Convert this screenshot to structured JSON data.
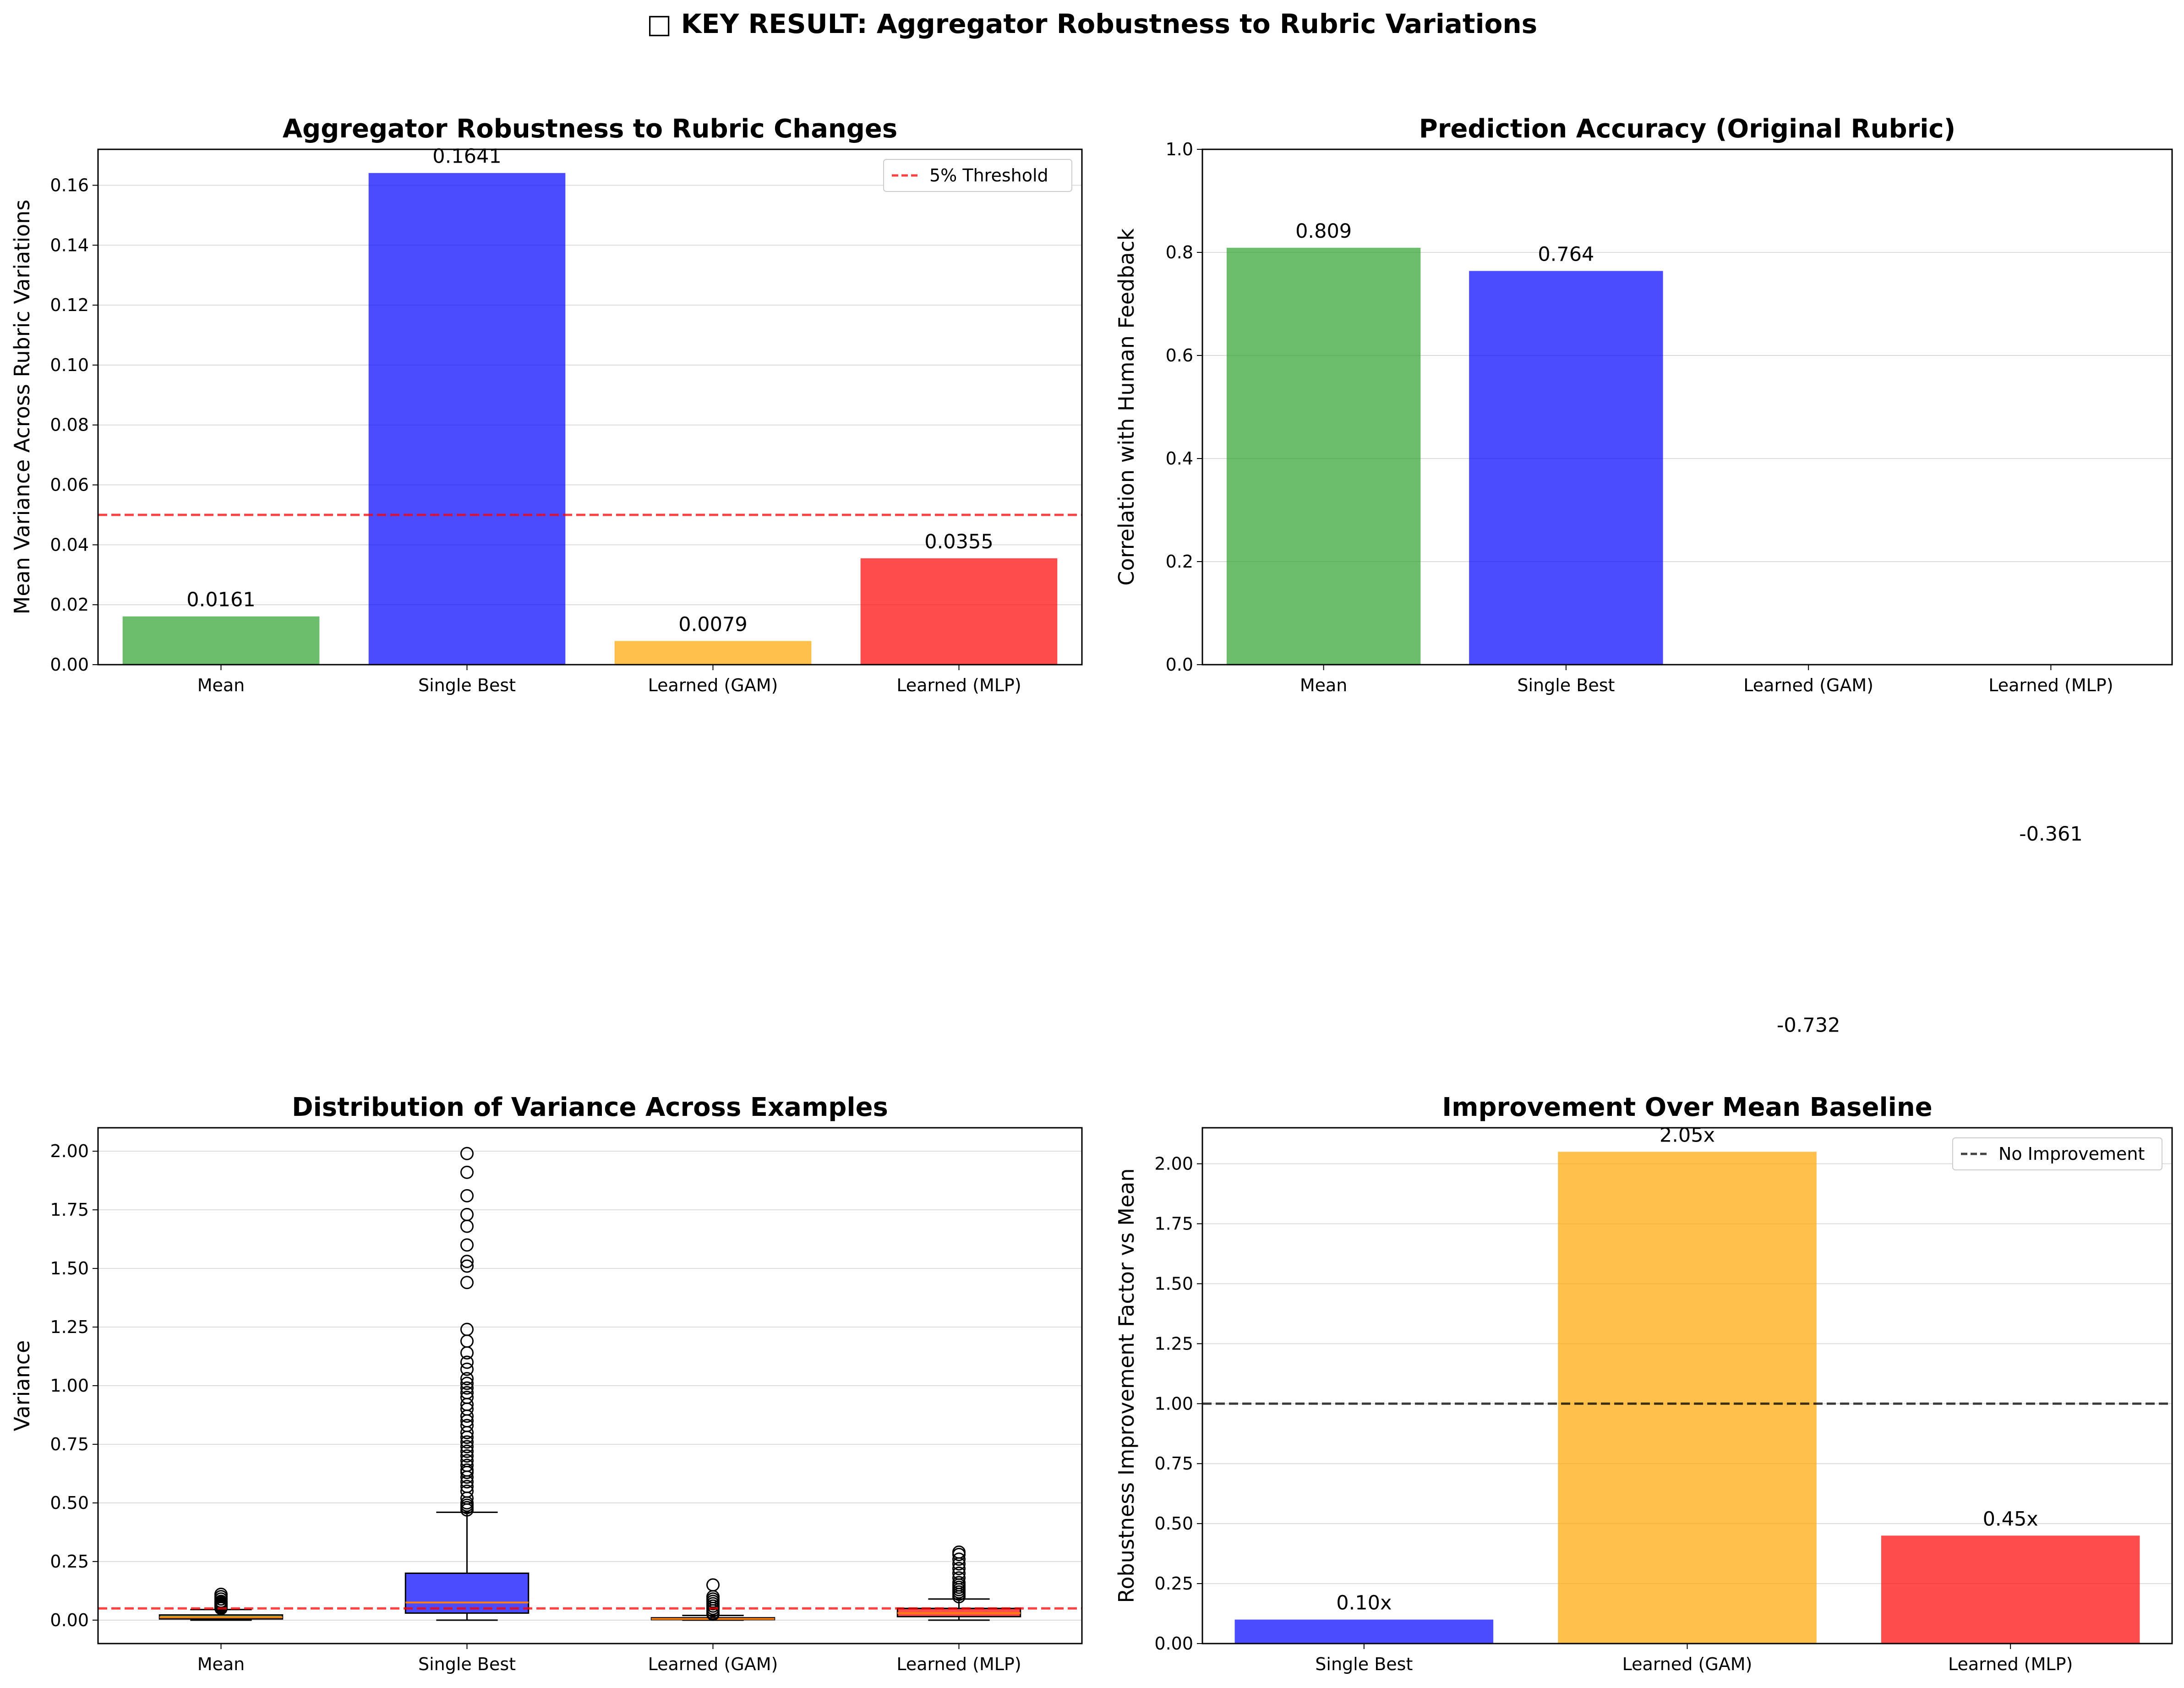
{
  "figure": {
    "suptitle": "□ KEY RESULT: Aggregator Robustness to Rubric Variations"
  },
  "chart_data": [
    {
      "type": "bar",
      "title": "Aggregator Robustness to Rubric Changes",
      "xlabel": "",
      "ylabel": "Mean Variance Across Rubric Variations",
      "categories": [
        "Mean",
        "Single Best",
        "Learned (GAM)",
        "Learned (MLP)"
      ],
      "values": [
        0.0161,
        0.1641,
        0.0079,
        0.0355
      ],
      "value_labels": [
        "0.0161",
        "0.1641",
        "0.0079",
        "0.0355"
      ],
      "colors": [
        "#2ca02c",
        "#0000ff",
        "#ffa500",
        "#ff0000"
      ],
      "ylim": [
        0,
        0.172
      ],
      "yticks": [
        0.0,
        0.02,
        0.04,
        0.06,
        0.08,
        0.1,
        0.12,
        0.14,
        0.16
      ],
      "ytick_labels": [
        "0.00",
        "0.02",
        "0.04",
        "0.06",
        "0.08",
        "0.10",
        "0.12",
        "0.14",
        "0.16"
      ],
      "grid": "y",
      "reference_line": {
        "value": 0.05,
        "label": "5% Threshold",
        "color": "#ff0000",
        "style": "dashed"
      },
      "legend": {
        "position": "top-right",
        "entries": [
          "5% Threshold"
        ]
      }
    },
    {
      "type": "bar",
      "title": "Prediction Accuracy (Original Rubric)",
      "xlabel": "",
      "ylabel": "Correlation with Human Feedback",
      "categories": [
        "Mean",
        "Single Best",
        "Learned (GAM)",
        "Learned (MLP)"
      ],
      "values": [
        0.809,
        0.764,
        -0.732,
        -0.361
      ],
      "value_labels": [
        "0.809",
        "0.764",
        "-0.732",
        "-0.361"
      ],
      "colors": [
        "#2ca02c",
        "#0000ff",
        "#ffa500",
        "#ff0000"
      ],
      "ylim": [
        0,
        1.0
      ],
      "yticks": [
        0.0,
        0.2,
        0.4,
        0.6,
        0.8,
        1.0
      ],
      "ytick_labels": [
        "0.0",
        "0.2",
        "0.4",
        "0.6",
        "0.8",
        "1.0"
      ],
      "grid": "y"
    },
    {
      "type": "box",
      "title": "Distribution of Variance Across Examples",
      "xlabel": "",
      "ylabel": "Variance",
      "categories": [
        "Mean",
        "Single Best",
        "Learned (GAM)",
        "Learned (MLP)"
      ],
      "colors": [
        "#2ca02c",
        "#0000ff",
        "#ffa500",
        "#ff0000"
      ],
      "boxes": [
        {
          "name": "Mean",
          "whisker_low": 0.0,
          "q1": 0.005,
          "median": 0.012,
          "q3": 0.022,
          "whisker_high": 0.045,
          "outliers": [
            0.05,
            0.055,
            0.06,
            0.065,
            0.07,
            0.075,
            0.08,
            0.09,
            0.1,
            0.11
          ]
        },
        {
          "name": "Single Best",
          "whisker_low": 0.0,
          "q1": 0.03,
          "median": 0.075,
          "q3": 0.2,
          "whisker_high": 0.46,
          "outliers": [
            0.47,
            0.48,
            0.49,
            0.5,
            0.52,
            0.55,
            0.57,
            0.59,
            0.61,
            0.63,
            0.64,
            0.66,
            0.68,
            0.7,
            0.72,
            0.74,
            0.76,
            0.78,
            0.8,
            0.83,
            0.85,
            0.87,
            0.9,
            0.92,
            0.95,
            0.97,
            0.99,
            1.01,
            1.03,
            1.07,
            1.1,
            1.14,
            1.19,
            1.24,
            1.44,
            1.51,
            1.53,
            1.6,
            1.68,
            1.73,
            1.81,
            1.91,
            1.99
          ]
        },
        {
          "name": "Learned (GAM)",
          "whisker_low": 0.0,
          "q1": 0.002,
          "median": 0.005,
          "q3": 0.01,
          "whisker_high": 0.02,
          "outliers": [
            0.025,
            0.03,
            0.04,
            0.05,
            0.06,
            0.07,
            0.08,
            0.09,
            0.1,
            0.15
          ]
        },
        {
          "name": "Learned (MLP)",
          "whisker_low": 0.0,
          "q1": 0.015,
          "median": 0.03,
          "q3": 0.05,
          "whisker_high": 0.09,
          "outliers": [
            0.1,
            0.11,
            0.12,
            0.13,
            0.14,
            0.15,
            0.16,
            0.18,
            0.2,
            0.22,
            0.24,
            0.26,
            0.28,
            0.29
          ]
        }
      ],
      "ylim": [
        -0.1,
        2.1
      ],
      "yticks": [
        0.0,
        0.25,
        0.5,
        0.75,
        1.0,
        1.25,
        1.5,
        1.75,
        2.0
      ],
      "ytick_labels": [
        "0.00",
        "0.25",
        "0.50",
        "0.75",
        "1.00",
        "1.25",
        "1.50",
        "1.75",
        "2.00"
      ],
      "grid": "y",
      "reference_line": {
        "value": 0.05,
        "color": "#ff0000",
        "style": "dashed"
      }
    },
    {
      "type": "bar",
      "title": "Improvement Over Mean Baseline",
      "xlabel": "",
      "ylabel": "Robustness Improvement Factor vs Mean",
      "categories": [
        "Single Best",
        "Learned (GAM)",
        "Learned (MLP)"
      ],
      "values": [
        0.1,
        2.05,
        0.45
      ],
      "value_labels": [
        "0.10x",
        "2.05x",
        "0.45x"
      ],
      "colors": [
        "#0000ff",
        "#ffa500",
        "#ff0000"
      ],
      "ylim": [
        0,
        2.15
      ],
      "yticks": [
        0.0,
        0.25,
        0.5,
        0.75,
        1.0,
        1.25,
        1.5,
        1.75,
        2.0
      ],
      "ytick_labels": [
        "0.00",
        "0.25",
        "0.50",
        "0.75",
        "1.00",
        "1.25",
        "1.50",
        "1.75",
        "2.00"
      ],
      "grid": "y",
      "reference_line": {
        "value": 1.0,
        "label": "No Improvement",
        "color": "#000000",
        "style": "dashed"
      },
      "legend": {
        "position": "top-right",
        "entries": [
          "No Improvement"
        ]
      }
    }
  ]
}
